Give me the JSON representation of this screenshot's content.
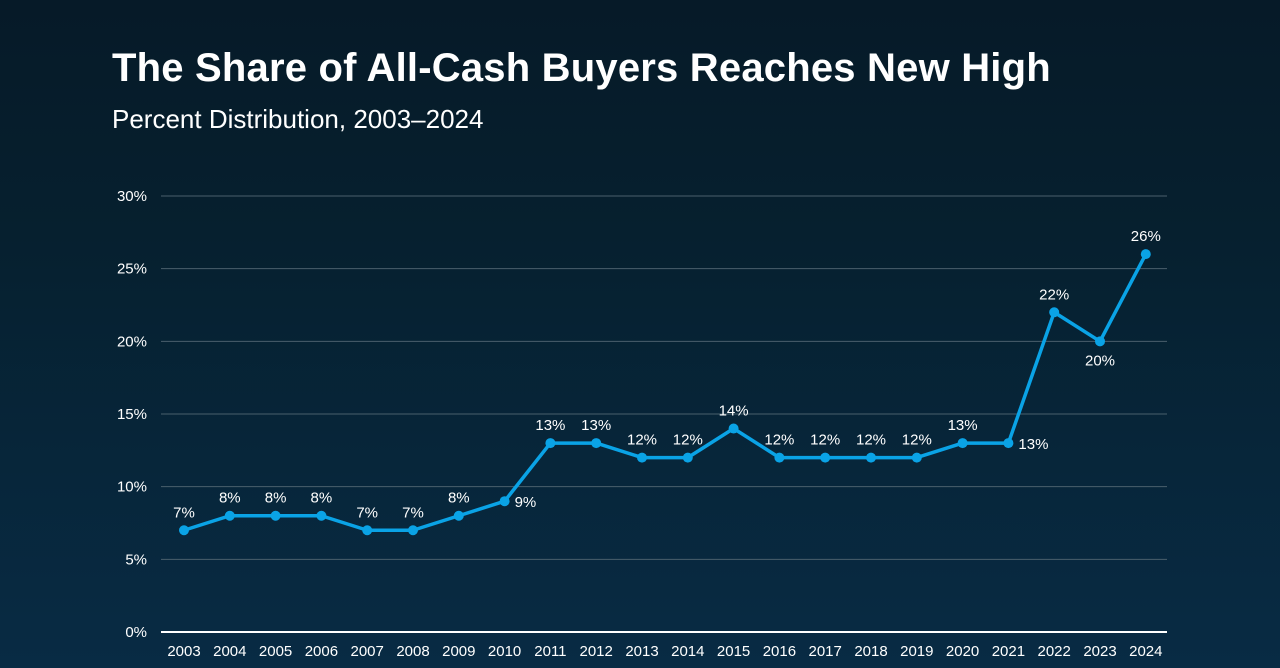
{
  "title": "The Share of All-Cash Buyers Reaches New High",
  "subtitle": "Percent Distribution, 2003–2024",
  "colors": {
    "line": "#0aa3e6",
    "grid": "#4a5f6c",
    "axis": "#ffffff",
    "text": "#ffffff"
  },
  "chart_data": {
    "type": "line",
    "title": "The Share of All-Cash Buyers Reaches New High",
    "subtitle": "Percent Distribution, 2003–2024",
    "xlabel": "",
    "ylabel": "",
    "categories": [
      "2003",
      "2004",
      "2005",
      "2006",
      "2007",
      "2008",
      "2009",
      "2010",
      "2011",
      "2012",
      "2013",
      "2014",
      "2015",
      "2016",
      "2017",
      "2018",
      "2019",
      "2020",
      "2021",
      "2022",
      "2023",
      "2024"
    ],
    "values": [
      7,
      8,
      8,
      8,
      7,
      7,
      8,
      9,
      13,
      13,
      12,
      12,
      14,
      12,
      12,
      12,
      12,
      13,
      13,
      22,
      20,
      26
    ],
    "data_labels": [
      "7%",
      "8%",
      "8%",
      "8%",
      "7%",
      "7%",
      "8%",
      "9%",
      "13%",
      "13%",
      "12%",
      "12%",
      "14%",
      "12%",
      "12%",
      "12%",
      "12%",
      "13%",
      "13%",
      "22%",
      "20%",
      "26%"
    ],
    "ylim": [
      0,
      30
    ],
    "yticks": [
      0,
      5,
      10,
      15,
      20,
      25,
      30
    ],
    "ytick_labels": [
      "0%",
      "5%",
      "10%",
      "15%",
      "20%",
      "25%",
      "30%"
    ],
    "grid": true,
    "legend": "none"
  }
}
